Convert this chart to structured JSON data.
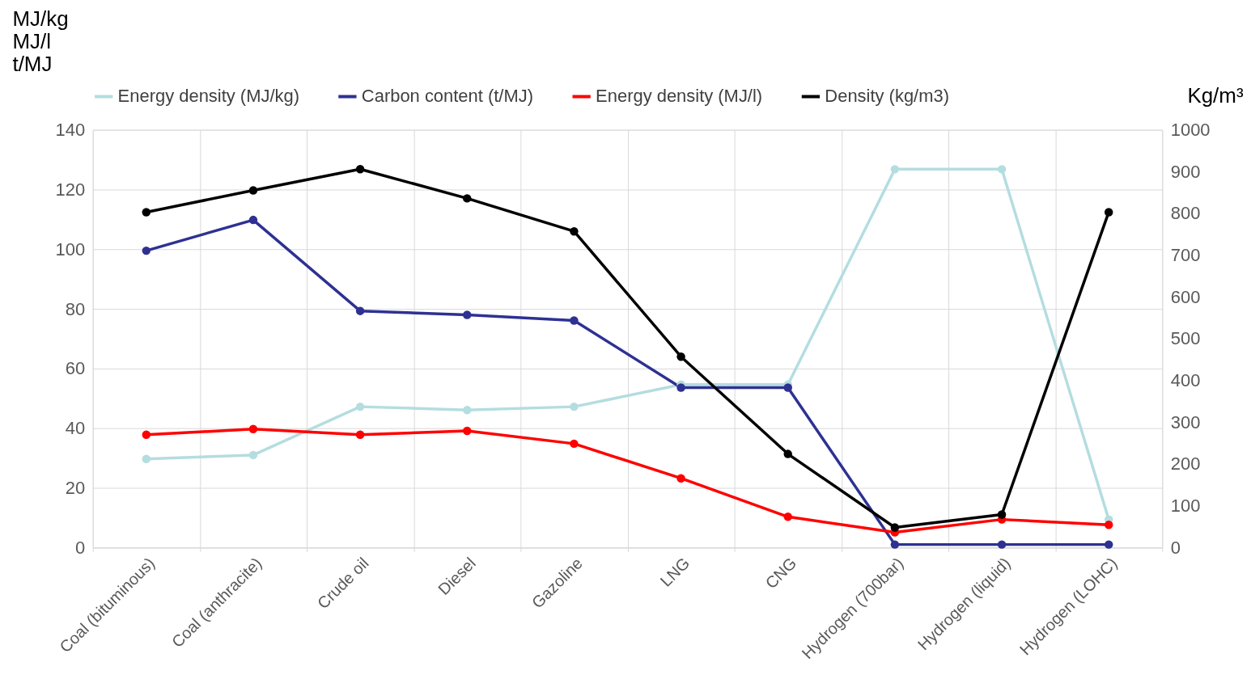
{
  "chart_data": {
    "type": "line",
    "ylabel": "MJ/kg\nMJ/l\nt/MJ",
    "y2label": "Kg/m³",
    "categories": [
      "Coal (bituminous)",
      "Coal (anthracite)",
      "Crude oil",
      "Diesel",
      "Gazoline",
      "LNG",
      "CNG",
      "Hydrogen (700bar)",
      "Hydrogen (liquid)",
      "Hydrogen (LOHC)"
    ],
    "series": [
      {
        "name": "Energy density (MJ/kg)",
        "color": "#b4dde0",
        "values": [
          29.7,
          31,
          47.2,
          46.1,
          47.2,
          54.6,
          54.6,
          126.8,
          126.8,
          9.4
        ]
      },
      {
        "name": "Carbon content (t/MJ)",
        "color": "#2e3192",
        "values": [
          99.5,
          109.8,
          79.3,
          78,
          76.1,
          53.6,
          53.6,
          1,
          1,
          1
        ]
      },
      {
        "name": "Energy density (MJ/l)",
        "color": "#ff0000",
        "values": [
          37.8,
          39.7,
          37.8,
          39.1,
          34.8,
          23.2,
          10.3,
          5.1,
          9.4,
          7.6
        ]
      },
      {
        "name": "Density (kg/m3)",
        "color": "#000000",
        "axis": "y2",
        "values": [
          803,
          855,
          906,
          836,
          757,
          457,
          224,
          48,
          79,
          803
        ]
      }
    ],
    "ylim": [
      0,
      140
    ],
    "yticks": [
      0,
      20,
      40,
      60,
      80,
      100,
      120,
      140
    ],
    "y2lim": [
      0,
      1000
    ],
    "y2ticks": [
      0,
      100,
      200,
      300,
      400,
      500,
      600,
      700,
      800,
      900,
      1000
    ],
    "grid": true,
    "legend": "top",
    "marker": "circle",
    "line_style": "solid"
  }
}
